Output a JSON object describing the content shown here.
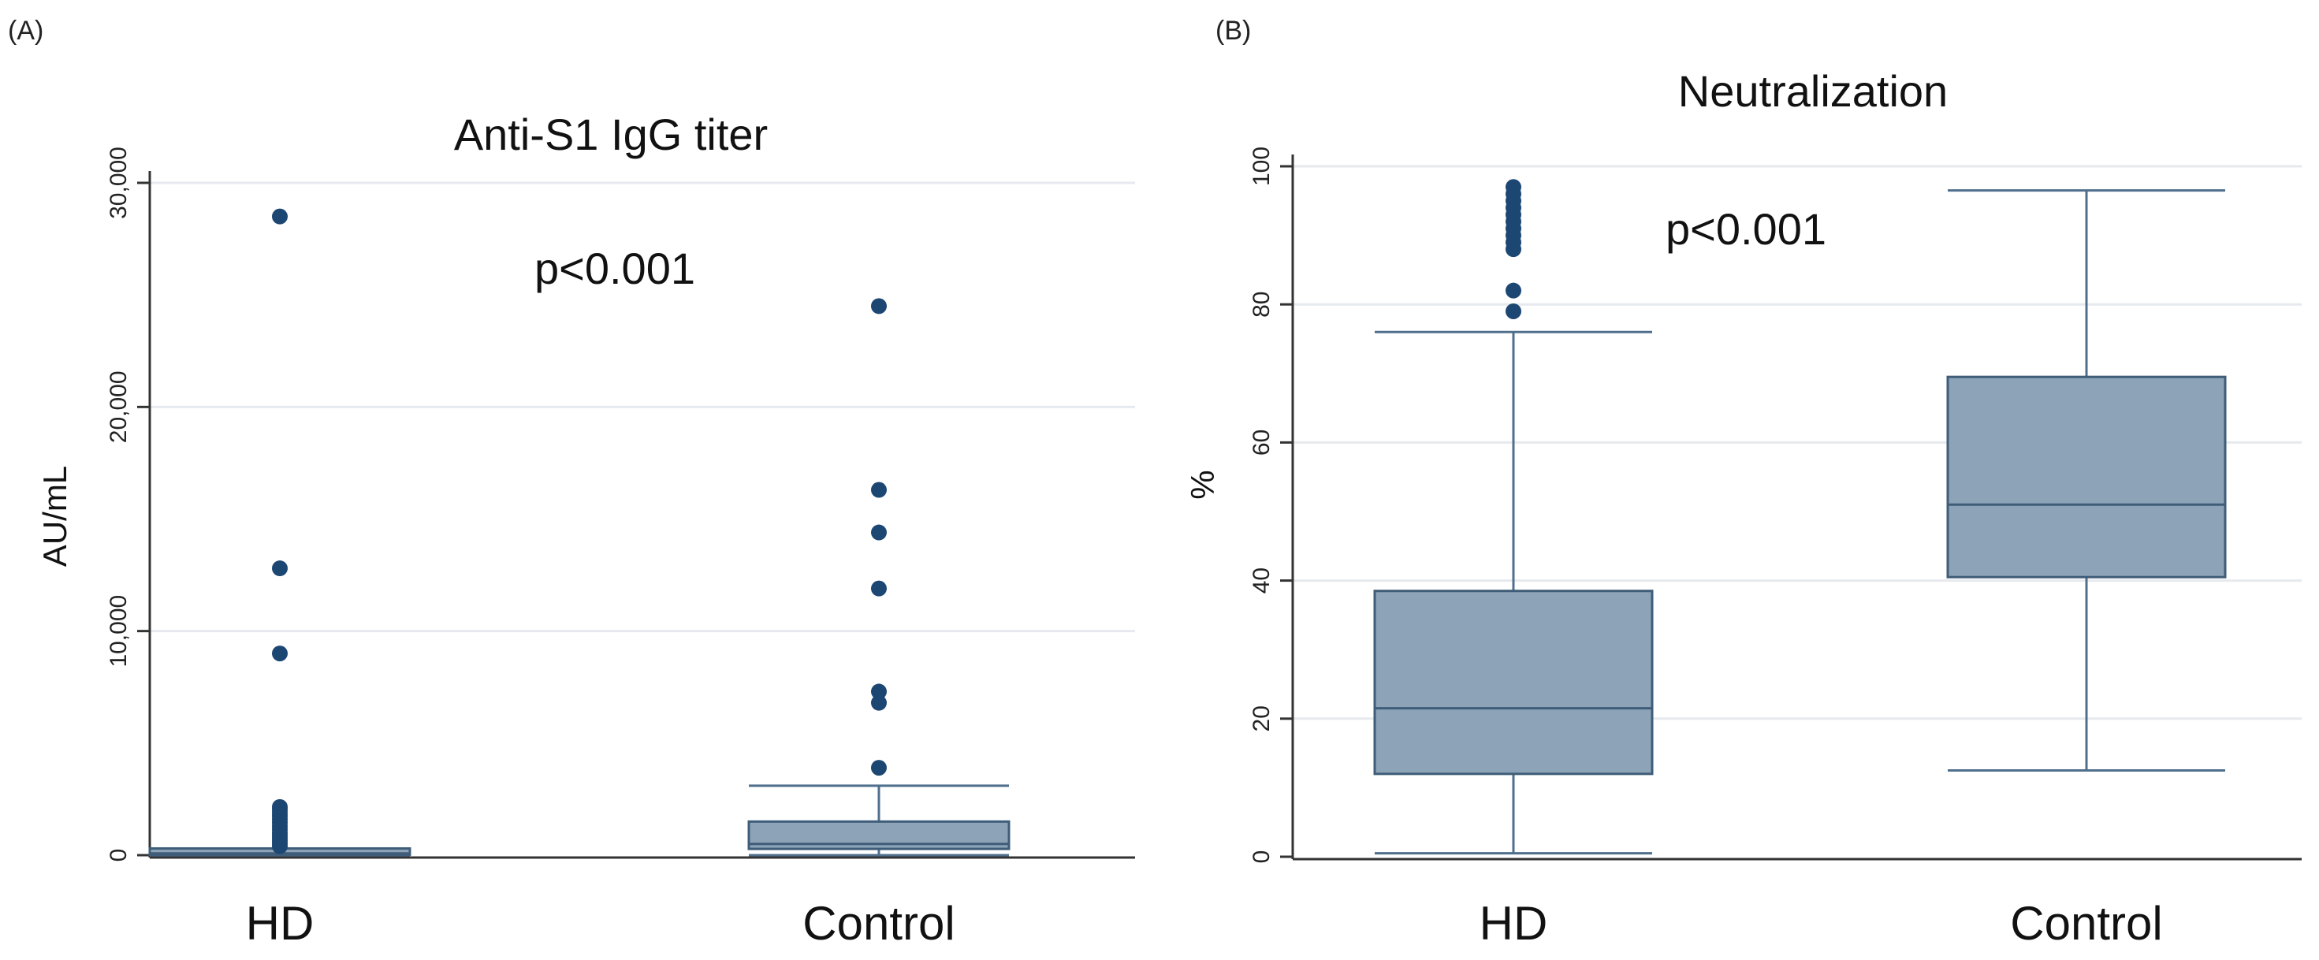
{
  "panels": {
    "a_label": "(A)",
    "b_label": "(B)"
  },
  "colors": {
    "box_fill": "#8ca3b8",
    "box_stroke": "#3f5d78",
    "whisker": "#4f6f8c",
    "outlier": "#1d4773",
    "axis": "#333333",
    "grid": "#e6eaee",
    "text": "#111111"
  },
  "chart_data": [
    {
      "type": "box",
      "title": "Anti-S1 IgG titer",
      "annotation": "p<0.001",
      "xlabel": "",
      "ylabel": "AU/mL",
      "ylim": [
        0,
        30000
      ],
      "yticks": [
        0,
        10000,
        20000,
        30000
      ],
      "ytick_labels": [
        "0",
        "10,000",
        "20,000",
        "30,000"
      ],
      "grid": true,
      "categories": [
        "HD",
        "Control"
      ],
      "boxes": [
        {
          "category": "HD",
          "whisker_low": 0,
          "q1": 20,
          "median": 80,
          "q3": 300,
          "whisker_high": 300,
          "outliers": [
            400,
            520,
            640,
            760,
            880,
            1000,
            1150,
            1300,
            1450,
            1600,
            1750,
            1900,
            2050,
            2150,
            9000,
            12800,
            28500
          ]
        },
        {
          "category": "Control",
          "whisker_low": 0,
          "q1": 280,
          "median": 500,
          "q3": 1500,
          "whisker_high": 3100,
          "outliers": [
            3900,
            6800,
            7300,
            11900,
            14400,
            16300,
            24500
          ]
        }
      ]
    },
    {
      "type": "box",
      "title": "Neutralization",
      "annotation": "p<0.001",
      "xlabel": "",
      "ylabel": "%",
      "ylim": [
        0,
        100
      ],
      "yticks": [
        0,
        20,
        40,
        60,
        80,
        100
      ],
      "ytick_labels": [
        "0",
        "20",
        "40",
        "60",
        "80",
        "100"
      ],
      "grid": true,
      "categories": [
        "HD",
        "Control"
      ],
      "boxes": [
        {
          "category": "HD",
          "whisker_low": 0.5,
          "q1": 12,
          "median": 21.5,
          "q3": 38.5,
          "whisker_high": 76,
          "outliers": [
            79,
            82,
            88,
            89,
            90,
            91,
            92,
            93,
            94,
            95,
            96,
            97
          ]
        },
        {
          "category": "Control",
          "whisker_low": 12.5,
          "q1": 40.5,
          "median": 51,
          "q3": 69.5,
          "whisker_high": 96.5,
          "outliers": []
        }
      ]
    }
  ]
}
